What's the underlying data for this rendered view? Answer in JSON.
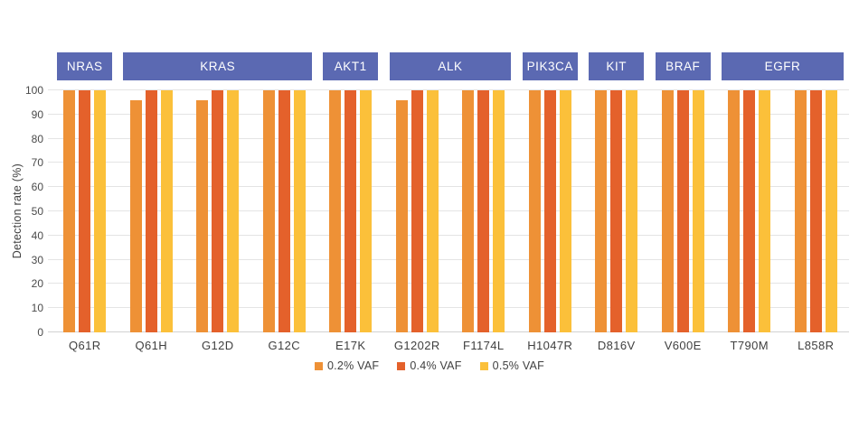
{
  "chart_data": {
    "type": "bar",
    "title": "",
    "ylabel": "Detection rate (%)",
    "ylim": [
      0,
      100
    ],
    "yticks": [
      0,
      10,
      20,
      30,
      40,
      50,
      60,
      70,
      80,
      90,
      100
    ],
    "grid": true,
    "legend_position": "bottom-center",
    "categories": [
      "Q61R",
      "Q61H",
      "G12D",
      "G12C",
      "E17K",
      "G1202R",
      "F1174L",
      "H1047R",
      "D816V",
      "V600E",
      "T790M",
      "L858R"
    ],
    "gene_groups": [
      {
        "gene": "NRAS",
        "start": 0,
        "end": 0
      },
      {
        "gene": "KRAS",
        "start": 1,
        "end": 3
      },
      {
        "gene": "AKT1",
        "start": 4,
        "end": 4
      },
      {
        "gene": "ALK",
        "start": 5,
        "end": 6
      },
      {
        "gene": "PIK3CA",
        "start": 7,
        "end": 7
      },
      {
        "gene": "KIT",
        "start": 8,
        "end": 8
      },
      {
        "gene": "BRAF",
        "start": 9,
        "end": 9
      },
      {
        "gene": "EGFR",
        "start": 10,
        "end": 11
      }
    ],
    "series": [
      {
        "name": "0.2% VAF",
        "color": "#EE9136",
        "values": [
          100,
          96,
          96,
          100,
          100,
          96,
          100,
          100,
          100,
          100,
          100,
          100
        ]
      },
      {
        "name": "0.4% VAF",
        "color": "#E4612B",
        "values": [
          100,
          100,
          100,
          100,
          100,
          100,
          100,
          100,
          100,
          100,
          100,
          100
        ]
      },
      {
        "name": "0.5% VAF",
        "color": "#FBC03A",
        "values": [
          100,
          100,
          100,
          100,
          100,
          100,
          100,
          100,
          100,
          100,
          100,
          100
        ]
      }
    ],
    "colors": {
      "gene_band": "#5B69B2",
      "gene_band_text": "#FFFFFF",
      "gridline": "#E4E4E4",
      "baseline": "#D2D2D2",
      "text": "#404040"
    }
  }
}
